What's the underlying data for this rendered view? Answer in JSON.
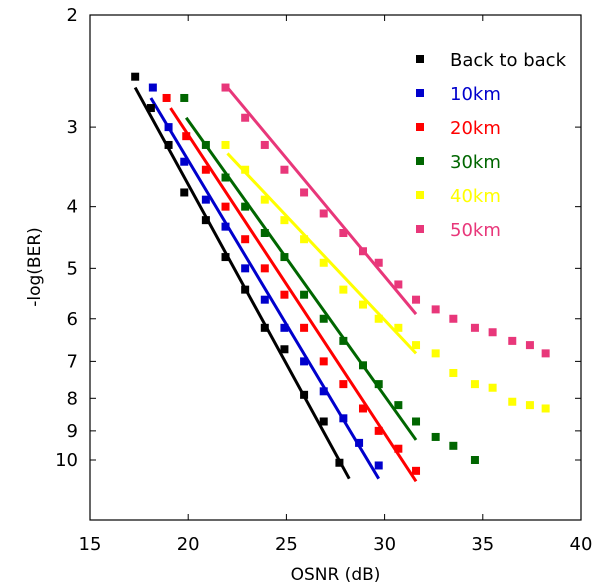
{
  "chart_data": {
    "type": "scatter",
    "title": "",
    "xlabel": "OSNR (dB)",
    "ylabel": "-log(BER)",
    "xlim": [
      15,
      40
    ],
    "ylim": [
      2,
      10
    ],
    "y_scale": "log (inverted: 2 at top, 10 at bottom)",
    "x_ticks": [
      "15",
      "20",
      "25",
      "30",
      "35",
      "40"
    ],
    "y_ticks": [
      "2",
      "3",
      "4",
      "5",
      "6",
      "7",
      "8",
      "9",
      "10"
    ],
    "grid": false,
    "legend_position": "top-right",
    "series": [
      {
        "name": "Back to back",
        "color": "#000000",
        "x": [
          17.3,
          18.1,
          19.0,
          19.8,
          20.9,
          21.9,
          22.9,
          23.9,
          24.9,
          25.9,
          26.9,
          27.7
        ],
        "y": [
          2.5,
          2.8,
          3.2,
          3.8,
          4.2,
          4.8,
          5.4,
          6.2,
          6.7,
          7.9,
          8.7,
          10.1
        ],
        "fit": {
          "x": [
            17.3,
            28.2
          ],
          "y": [
            2.6,
            10.7
          ]
        }
      },
      {
        "name": "10km",
        "color": "#0000cc",
        "x": [
          18.2,
          19.0,
          19.8,
          20.9,
          21.9,
          22.9,
          23.9,
          24.9,
          25.9,
          26.9,
          27.9,
          28.7,
          29.7
        ],
        "y": [
          2.6,
          3.0,
          3.4,
          3.9,
          4.3,
          5.0,
          5.6,
          6.2,
          7.0,
          7.8,
          8.6,
          9.4,
          10.2
        ],
        "fit": {
          "x": [
            18.1,
            29.7
          ],
          "y": [
            2.7,
            10.7
          ]
        }
      },
      {
        "name": "20km",
        "color": "#ff0000",
        "x": [
          18.9,
          19.9,
          20.9,
          21.9,
          22.9,
          23.9,
          24.9,
          25.9,
          26.9,
          27.9,
          28.9,
          29.7,
          30.7,
          31.6
        ],
        "y": [
          2.7,
          3.1,
          3.5,
          4.0,
          4.5,
          5.0,
          5.5,
          6.2,
          7.0,
          7.6,
          8.3,
          9.0,
          9.6,
          10.4
        ],
        "fit": {
          "x": [
            19.1,
            31.6
          ],
          "y": [
            2.8,
            10.8
          ]
        }
      },
      {
        "name": "30km",
        "color": "#006600",
        "x": [
          19.8,
          20.9,
          21.9,
          22.9,
          23.9,
          24.9,
          25.9,
          26.9,
          27.9,
          28.9,
          29.7,
          30.7,
          31.6,
          32.6,
          33.5,
          34.6
        ],
        "y": [
          2.7,
          3.2,
          3.6,
          4.0,
          4.4,
          4.8,
          5.5,
          6.0,
          6.5,
          7.1,
          7.6,
          8.2,
          8.7,
          9.2,
          9.5,
          10.0
        ],
        "fit": {
          "x": [
            19.9,
            31.6
          ],
          "y": [
            2.9,
            9.3
          ]
        }
      },
      {
        "name": "40km",
        "color": "#ffff00",
        "x": [
          21.9,
          22.9,
          23.9,
          24.9,
          25.9,
          26.9,
          27.9,
          28.9,
          29.7,
          30.7,
          31.6,
          32.6,
          33.5,
          34.6,
          35.5,
          36.5,
          37.4,
          38.2
        ],
        "y": [
          3.2,
          3.5,
          3.9,
          4.2,
          4.5,
          4.9,
          5.4,
          5.7,
          6.0,
          6.2,
          6.6,
          6.8,
          7.3,
          7.6,
          7.7,
          8.1,
          8.2,
          8.3
        ],
        "fit": {
          "x": [
            22.0,
            31.6
          ],
          "y": [
            3.3,
            6.8
          ]
        }
      },
      {
        "name": "50km",
        "color": "#e8377a",
        "x": [
          21.9,
          22.9,
          23.9,
          24.9,
          25.9,
          26.9,
          27.9,
          28.9,
          29.7,
          30.7,
          31.6,
          32.6,
          33.5,
          34.6,
          35.5,
          36.5,
          37.4,
          38.2
        ],
        "y": [
          2.6,
          2.9,
          3.2,
          3.5,
          3.8,
          4.1,
          4.4,
          4.7,
          4.9,
          5.3,
          5.6,
          5.8,
          6.0,
          6.2,
          6.3,
          6.5,
          6.6,
          6.8
        ],
        "fit": {
          "x": [
            22.0,
            31.6
          ],
          "y": [
            2.6,
            5.9
          ]
        }
      }
    ]
  }
}
